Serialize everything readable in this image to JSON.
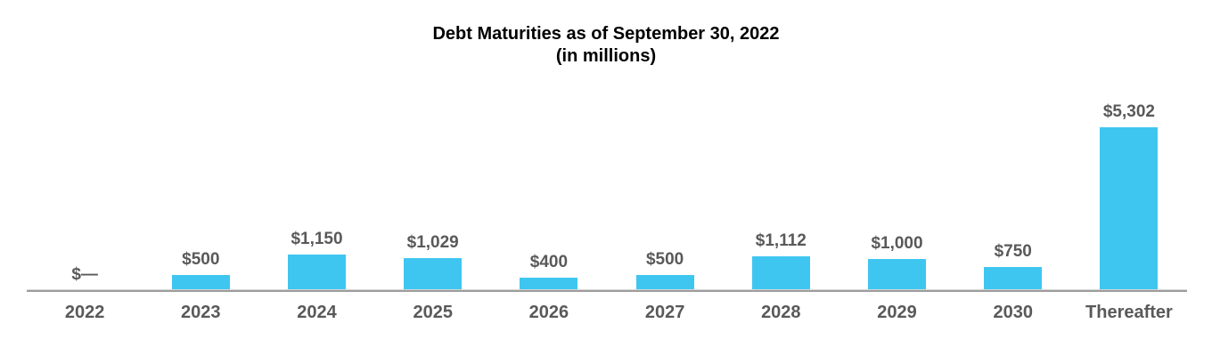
{
  "title": "Debt Maturities as of September 30, 2022",
  "subtitle": "(in millions)",
  "colors": {
    "bar": "#3FC6F0",
    "label_text": "#595959",
    "title_text": "#000000",
    "axis_line": "#9D9D9D",
    "background": "#FFFFFF"
  },
  "chart_data": {
    "type": "bar",
    "title": "Debt Maturities as of September 30, 2022",
    "subtitle": "(in millions)",
    "xlabel": "",
    "ylabel": "",
    "categories": [
      "2022",
      "2023",
      "2024",
      "2025",
      "2026",
      "2027",
      "2028",
      "2029",
      "2030",
      "Thereafter"
    ],
    "values": [
      0,
      500,
      1150,
      1029,
      400,
      500,
      1112,
      1000,
      750,
      5302
    ],
    "value_labels": [
      "$—",
      "$500",
      "$1,150",
      "$1,029",
      "$400",
      "$500",
      "$1,112",
      "$1,000",
      "$750",
      "$5,302"
    ],
    "ylim": [
      0,
      5302
    ],
    "grid": false,
    "legend": false,
    "bar_color": "#3FC6F0",
    "data_label_color": "#595959",
    "axis_label_color": "#595959"
  }
}
